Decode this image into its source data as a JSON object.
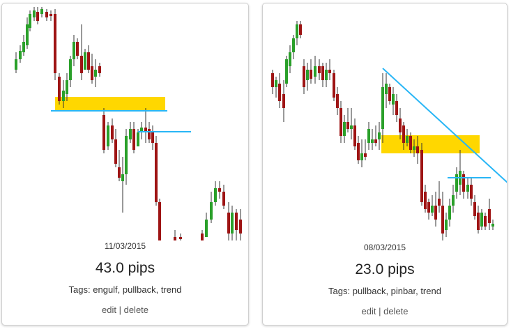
{
  "cards": [
    {
      "date": "11/03/2015",
      "pips": "43.0 pips",
      "tags_label": "Tags:",
      "tags": "engulf, pullback, trend",
      "edit_label": "edit",
      "separator": "|",
      "delete_label": "delete",
      "colors": {
        "bull": "#2aa02a",
        "bear": "#9e1414",
        "zone": "#ffd700",
        "line": "#29b6f6"
      }
    },
    {
      "date": "08/03/2015",
      "pips": "23.0 pips",
      "tags_label": "Tags:",
      "tags": "pullback, pinbar, trend",
      "edit_label": "edit",
      "separator": "|",
      "delete_label": "delete",
      "colors": {
        "bull": "#2aa02a",
        "bear": "#9e1414",
        "zone": "#ffd700",
        "line": "#29b6f6"
      }
    }
  ]
}
